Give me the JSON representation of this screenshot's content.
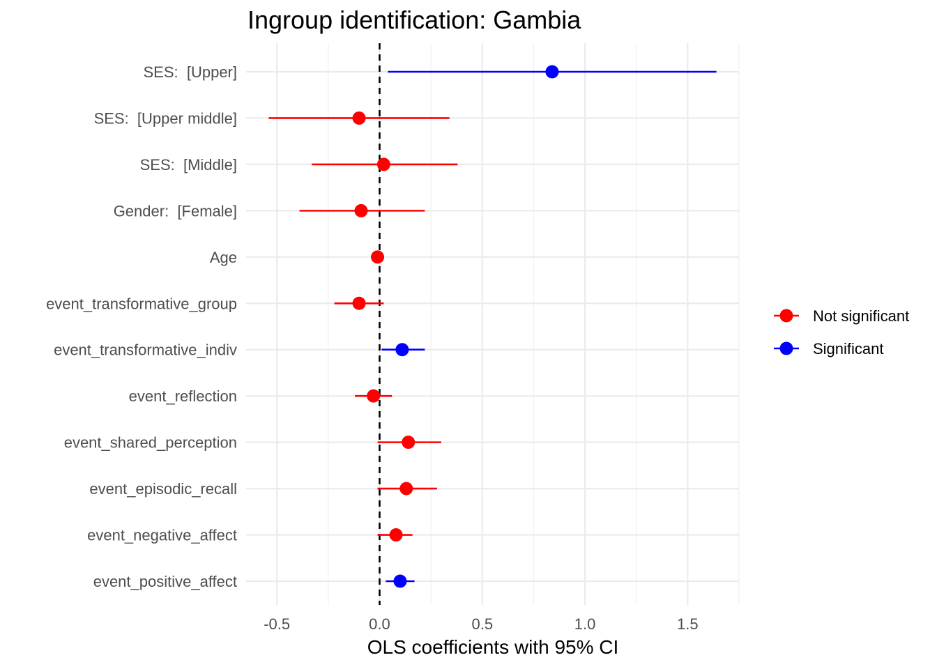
{
  "chart_data": {
    "type": "scatter",
    "title": "Ingroup identification: Gambia",
    "xlabel": "OLS coefficients with 95% CI",
    "ylabel": "",
    "xlim": [
      -0.65,
      1.75
    ],
    "xticks": [
      -0.5,
      0.0,
      0.5,
      1.0,
      1.5
    ],
    "xtick_labels": [
      "-0.5",
      "0.0",
      "0.5",
      "1.0",
      "1.5"
    ],
    "reference_line": 0,
    "grid": true,
    "legend_position": "right",
    "legend": [
      {
        "label": "Not significant",
        "color": "#ff0000"
      },
      {
        "label": "Significant",
        "color": "#0000ff"
      }
    ],
    "terms": [
      {
        "label": "SES:  [Upper]",
        "estimate": 0.84,
        "ci_low": 0.04,
        "ci_high": 1.64,
        "significant": true
      },
      {
        "label": "SES:  [Upper middle]",
        "estimate": -0.1,
        "ci_low": -0.54,
        "ci_high": 0.34,
        "significant": false
      },
      {
        "label": "SES:  [Middle]",
        "estimate": 0.02,
        "ci_low": -0.33,
        "ci_high": 0.38,
        "significant": false
      },
      {
        "label": "Gender:  [Female]",
        "estimate": -0.09,
        "ci_low": -0.39,
        "ci_high": 0.22,
        "significant": false
      },
      {
        "label": "Age",
        "estimate": -0.01,
        "ci_low": -0.02,
        "ci_high": 0.0,
        "significant": false
      },
      {
        "label": "event_transformative_group",
        "estimate": -0.1,
        "ci_low": -0.22,
        "ci_high": 0.02,
        "significant": false
      },
      {
        "label": "event_transformative_indiv",
        "estimate": 0.11,
        "ci_low": 0.01,
        "ci_high": 0.22,
        "significant": true
      },
      {
        "label": "event_reflection",
        "estimate": -0.03,
        "ci_low": -0.12,
        "ci_high": 0.06,
        "significant": false
      },
      {
        "label": "event_shared_perception",
        "estimate": 0.14,
        "ci_low": -0.01,
        "ci_high": 0.3,
        "significant": false
      },
      {
        "label": "event_episodic_recall",
        "estimate": 0.13,
        "ci_low": -0.01,
        "ci_high": 0.28,
        "significant": false
      },
      {
        "label": "event_negative_affect",
        "estimate": 0.08,
        "ci_low": -0.01,
        "ci_high": 0.16,
        "significant": false
      },
      {
        "label": "event_positive_affect",
        "estimate": 0.1,
        "ci_low": 0.03,
        "ci_high": 0.17,
        "significant": true
      }
    ]
  }
}
